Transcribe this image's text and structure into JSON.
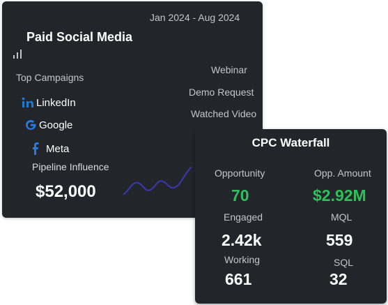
{
  "paid_social_card": {
    "date_range": "Jan 2024 - Aug 2024",
    "title": "Paid Social Media",
    "top_campaigns_label": "Top Campaigns",
    "campaigns": [
      {
        "name": "LinkedIn",
        "icon": "linkedin-icon",
        "color": "#1f7ad1"
      },
      {
        "name": "Google",
        "icon": "google-icon",
        "color": "#2a79e0"
      },
      {
        "name": "Meta",
        "icon": "facebook-icon",
        "color": "#2a79e0"
      }
    ],
    "pipeline_label": "Pipeline Influence",
    "pipeline_value": "$52,000",
    "side_labels": [
      "Webinar",
      "Demo Request",
      "Watched Video"
    ],
    "sparkline_color": "#3a37a8"
  },
  "cpc_waterfall_card": {
    "title": "CPC Waterfall",
    "metrics": {
      "opportunity": {
        "label": "Opportunity",
        "value": "70"
      },
      "opp_amount": {
        "label": "Opp. Amount",
        "value": "$2.92M"
      },
      "engaged": {
        "label": "Engaged",
        "value": "2.42k"
      },
      "mql": {
        "label": "MQL",
        "value": "559"
      },
      "working": {
        "label": "Working",
        "value": "661"
      },
      "sql": {
        "label": "SQL",
        "value": "32"
      }
    },
    "highlight_color": "#2fbf5b"
  }
}
